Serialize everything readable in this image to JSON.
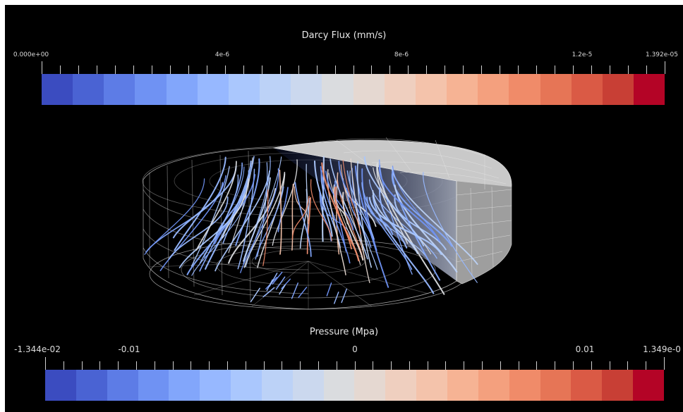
{
  "flux_bar": {
    "title": "Darcy Flux (mm/s)",
    "labels": [
      "0.000e+00",
      "4e-6",
      "8e-6",
      "1.2e-5",
      "1.392e-05"
    ],
    "colors": [
      "#3b4cc0",
      "#4a63d3",
      "#5d7ce6",
      "#6f92f3",
      "#82a6fb",
      "#97b8ff",
      "#aac7fd",
      "#bcd2f7",
      "#cbd8ee",
      "#dadcdf",
      "#e5d8d1",
      "#efcfbf",
      "#f4c3ab",
      "#f6b394",
      "#f4a07e",
      "#f08b69",
      "#e67556",
      "#da5a45",
      "#c83f35",
      "#b40426"
    ]
  },
  "pressure_bar": {
    "title": "Pressure (Mpa)",
    "labels": [
      "-1.344e-02",
      "-0.01",
      "0",
      "0.01",
      "1.349e-0"
    ],
    "colors": [
      "#3b4cc0",
      "#4a63d3",
      "#5d7ce6",
      "#6f92f3",
      "#82a6fb",
      "#97b8ff",
      "#aac7fd",
      "#bcd2f7",
      "#cbd8ee",
      "#dadcdf",
      "#e5d8d1",
      "#efcfbf",
      "#f4c3ab",
      "#f6b394",
      "#f4a07e",
      "#f08b69",
      "#e67556",
      "#da5a45",
      "#c83f35",
      "#b40426"
    ]
  },
  "scene": {
    "background": "#000000",
    "mesh_color": "#cfcfcf",
    "solid_top_color": "#c4c4c4",
    "solid_side_color": "#9a9a9a"
  }
}
